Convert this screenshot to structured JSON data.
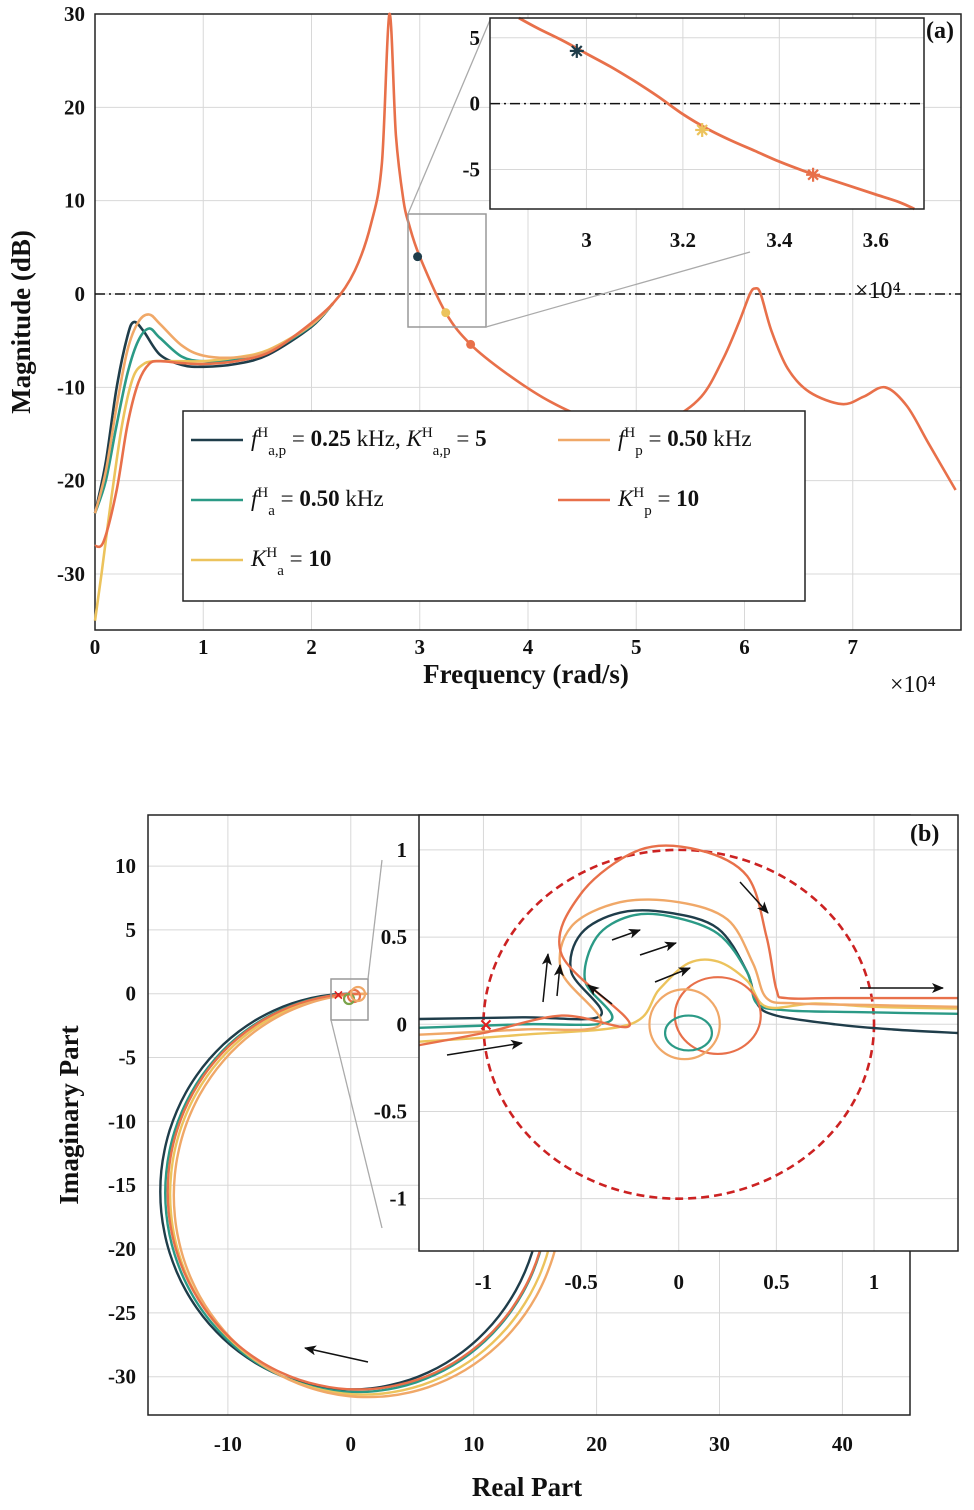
{
  "chart_data": [
    {
      "panel": "(a)",
      "type": "line",
      "xlabel": "Frequency (rad/s)",
      "ylabel": "Magnitude (dB)",
      "x_multiplier": "×10⁴",
      "xlim": [
        0,
        8
      ],
      "ylim": [
        -36,
        30
      ],
      "xticks": [
        "0",
        "1",
        "2",
        "3",
        "4",
        "5",
        "6",
        "7"
      ],
      "yticks": [
        "30",
        "20",
        "10",
        "0",
        "-10",
        "-20",
        "-30"
      ],
      "grid": true,
      "reference_line": 0,
      "legend": [
        {
          "color": "#1f3d4a",
          "math_sym": "f",
          "math_sub": "a,p",
          "sup": "H",
          "op": " = ",
          "value": "0.25",
          "unit": " kHz, ",
          "math_sym2": "K",
          "math_sub2": "a,p",
          "sup2": "H",
          "op2": " = ",
          "value2": "5"
        },
        {
          "color": "#f0a868",
          "math_sym": "f",
          "math_sub": "p",
          "sup": "H",
          "op": " = ",
          "value": "0.50",
          "unit": " kHz"
        },
        {
          "color": "#2b9a86",
          "math_sym": "f",
          "math_sub": "a",
          "sup": "H",
          "op": " = ",
          "value": "0.50",
          "unit": " kHz"
        },
        {
          "color": "#e8704a",
          "math_sym": "K",
          "math_sub": "p",
          "sup": "H",
          "op": " = ",
          "value": "10",
          "unit": ""
        },
        {
          "color": "#ecc35c",
          "math_sym": "K",
          "math_sub": "a",
          "sup": "H",
          "op": " = ",
          "value": "10",
          "unit": ""
        }
      ],
      "series": [
        {
          "color": "#1f3d4a",
          "x": [
            0,
            0.1,
            0.2,
            0.3,
            0.36,
            0.45,
            0.6,
            0.8,
            1.0,
            1.3,
            1.6,
            2.0,
            2.2
          ],
          "y": [
            -23.5,
            -18,
            -10,
            -4.5,
            -3,
            -4,
            -6.5,
            -7.6,
            -7.8,
            -7.5,
            -6.5,
            -3.5,
            -1
          ]
        },
        {
          "color": "#2b9a86",
          "x": [
            0,
            0.1,
            0.2,
            0.3,
            0.4,
            0.5,
            0.6,
            0.8,
            1.0,
            1.3,
            1.6,
            2.0,
            2.2
          ],
          "y": [
            -23.5,
            -20,
            -14,
            -8.5,
            -5,
            -3.7,
            -4.7,
            -6.7,
            -7.2,
            -7,
            -6.2,
            -3.4,
            -1
          ]
        },
        {
          "color": "#ecc35c",
          "x": [
            0,
            0.06,
            0.15,
            0.25,
            0.35,
            0.45,
            0.55,
            0.65,
            0.8,
            1.0,
            1.3,
            1.6,
            2.0,
            2.2
          ],
          "y": [
            -35,
            -30,
            -22,
            -14,
            -9,
            -7.5,
            -7.2,
            -7.2,
            -7.2,
            -7.2,
            -6.8,
            -6,
            -3.3,
            -1
          ]
        },
        {
          "color": "#f0a868",
          "x": [
            0,
            0.1,
            0.2,
            0.3,
            0.4,
            0.5,
            0.6,
            0.8,
            1.0,
            1.3,
            1.6,
            2.0,
            2.2
          ],
          "y": [
            -23.5,
            -19,
            -12,
            -6,
            -3,
            -2.2,
            -3.2,
            -5.5,
            -6.6,
            -6.8,
            -6.1,
            -3.3,
            -1
          ]
        },
        {
          "color": "#e8704a",
          "x": [
            0,
            0.08,
            0.2,
            0.3,
            0.4,
            0.5,
            0.6,
            0.8,
            1.0,
            1.3,
            1.6,
            1.9,
            2.2,
            2.4,
            2.55,
            2.65,
            2.72,
            2.78,
            2.85,
            2.9,
            3.0,
            3.24,
            3.47,
            3.8,
            4.2,
            4.6,
            5.0,
            5.3,
            5.6,
            5.8,
            5.95,
            6.05,
            6.1,
            6.15,
            6.25,
            6.4,
            6.6,
            6.9,
            7.1,
            7.3,
            7.5,
            7.7,
            7.95
          ],
          "y": [
            -27,
            -26.5,
            -21,
            -14,
            -9.5,
            -7.5,
            -7.2,
            -7.4,
            -7.5,
            -7.2,
            -6.3,
            -4,
            -1,
            2.5,
            7.5,
            14,
            30,
            17,
            10,
            7.5,
            4,
            -2,
            -5.4,
            -8.5,
            -11.5,
            -13.5,
            -14.1,
            -13.5,
            -11,
            -7,
            -3,
            0,
            0.6,
            0,
            -4,
            -8,
            -10.5,
            -11.8,
            -11,
            -10,
            -12,
            -16,
            -21
          ]
        }
      ],
      "markers": [
        {
          "x": 2.98,
          "y": 4,
          "color": "#1f3d4a"
        },
        {
          "x": 3.24,
          "y": -2,
          "color": "#ecc35c"
        },
        {
          "x": 3.47,
          "y": -5.4,
          "color": "#e8704a"
        }
      ],
      "inset": {
        "xlim": [
          2.8,
          3.7
        ],
        "ylim": [
          -8,
          6.5
        ],
        "xticks": [
          "3",
          "3.2",
          "3.4",
          "3.6"
        ],
        "yticks": [
          "5",
          "0",
          "-5"
        ],
        "x_multiplier": "×10⁴",
        "curve_x": [
          2.86,
          2.9,
          2.95,
          3.0,
          3.05,
          3.1,
          3.15,
          3.2,
          3.25,
          3.3,
          3.35,
          3.4,
          3.45,
          3.5,
          3.55,
          3.6,
          3.65,
          3.68
        ],
        "curve_y": [
          6.5,
          5.7,
          4.8,
          3.8,
          2.8,
          1.7,
          0.5,
          -0.8,
          -1.9,
          -2.8,
          -3.6,
          -4.4,
          -5.1,
          -5.7,
          -6.3,
          -6.9,
          -7.5,
          -8
        ]
      }
    },
    {
      "panel": "(b)",
      "type": "line",
      "xlabel": "Real Part",
      "ylabel": "Imaginary Part",
      "xlim": [
        -16.5,
        45.5
      ],
      "ylim": [
        -33,
        14
      ],
      "xticks": [
        "-10",
        "0",
        "10",
        "20",
        "30",
        "40"
      ],
      "yticks": [
        "10",
        "5",
        "0",
        "-5",
        "-10",
        "-15",
        "-20",
        "-25",
        "-30"
      ],
      "grid": true,
      "critical_point": [
        -1,
        0
      ],
      "outer_loop_centers": [
        {
          "color": "#1f3d4a",
          "cx": 0.0,
          "cy": -15.5,
          "r": 15.5
        },
        {
          "color": "#2b9a86",
          "cx": 0.5,
          "cy": -15.6,
          "r": 15.6
        },
        {
          "color": "#ecc35c",
          "cx": 1.0,
          "cy": -15.7,
          "r": 15.7
        },
        {
          "color": "#f0a868",
          "cx": 1.4,
          "cy": -15.8,
          "r": 15.8
        },
        {
          "color": "#e8704a",
          "cx": 0.6,
          "cy": -15.5,
          "r": 15.5
        }
      ],
      "inset": {
        "xlim": [
          -1.33,
          1.43
        ],
        "ylim": [
          -1.3,
          1.2
        ],
        "xticks": [
          "-1",
          "-0.5",
          "0",
          "0.5",
          "1"
        ],
        "yticks": [
          "1",
          "0.5",
          "0",
          "-0.5",
          "-1"
        ],
        "unit_circle": {
          "cx": 0,
          "cy": 0,
          "r": 1,
          "color": "#cc2222"
        },
        "series": [
          {
            "color": "#1f3d4a",
            "x": [
              -1.33,
              -0.8,
              -0.4,
              -0.55,
              -0.5,
              -0.3,
              -0.05,
              0.2,
              0.35,
              0.4,
              0.5,
              0.8,
              1.1,
              1.43
            ],
            "y": [
              0.03,
              0.04,
              0.05,
              0.3,
              0.52,
              0.64,
              0.64,
              0.55,
              0.3,
              0.12,
              0.05,
              0.0,
              -0.03,
              -0.05
            ]
          },
          {
            "color": "#2b9a86",
            "x": [
              -1.33,
              -0.8,
              -0.35,
              -0.48,
              -0.42,
              -0.25,
              -0.05,
              0.2,
              0.35,
              0.4,
              0.55,
              0.9,
              1.43
            ],
            "y": [
              -0.02,
              0.0,
              0.02,
              0.25,
              0.5,
              0.62,
              0.62,
              0.52,
              0.3,
              0.12,
              0.08,
              0.07,
              0.06
            ]
          },
          {
            "color": "#ecc35c",
            "x": [
              -1.33,
              -0.8,
              -0.25,
              -0.1,
              0.05,
              0.2,
              0.35,
              0.45,
              0.7,
              1.0,
              1.43
            ],
            "y": [
              -0.1,
              -0.06,
              0.0,
              0.2,
              0.35,
              0.36,
              0.25,
              0.1,
              0.12,
              0.1,
              0.09
            ]
          },
          {
            "color": "#f0a868",
            "x": [
              -1.33,
              -0.8,
              -0.4,
              -0.6,
              -0.55,
              -0.3,
              0.0,
              0.25,
              0.38,
              0.45,
              0.6,
              1.0,
              1.43
            ],
            "y": [
              -0.06,
              -0.03,
              0.0,
              0.3,
              0.56,
              0.7,
              0.7,
              0.6,
              0.35,
              0.15,
              0.12,
              0.11,
              0.1
            ]
          },
          {
            "color": "#e8704a",
            "x": [
              -1.33,
              -1.0,
              -0.6,
              -0.25,
              -0.6,
              -0.5,
              -0.2,
              0.1,
              0.35,
              0.45,
              0.5,
              0.55,
              0.8,
              1.43
            ],
            "y": [
              -0.12,
              -0.05,
              0.05,
              0.0,
              0.4,
              0.75,
              1.0,
              1.0,
              0.85,
              0.5,
              0.2,
              0.15,
              0.15,
              0.15
            ]
          }
        ]
      }
    }
  ]
}
